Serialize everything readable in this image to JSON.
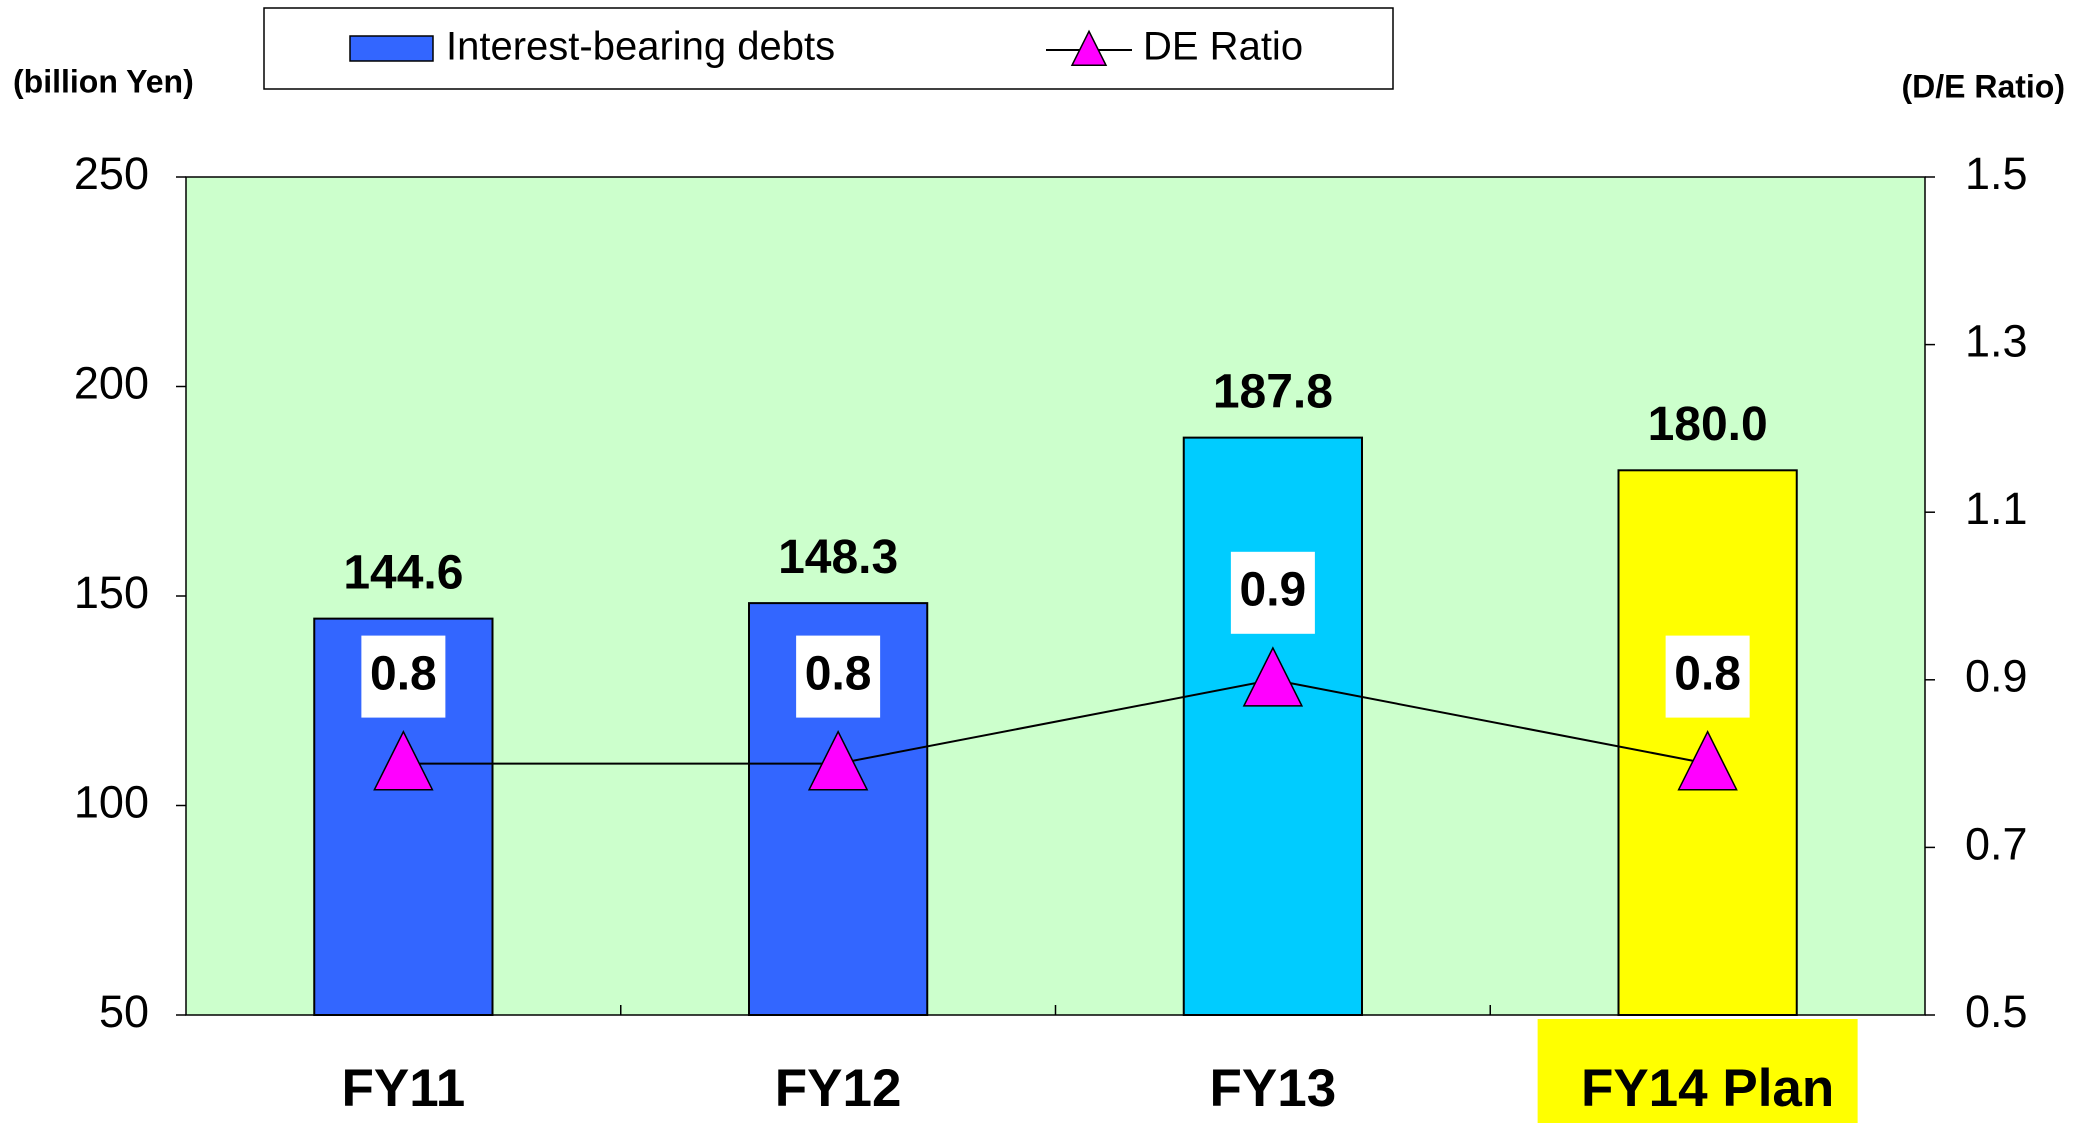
{
  "chart_data": {
    "type": "bar-line",
    "y_label": "(billion Yen)",
    "y2_label": "(D/E Ratio)",
    "categories": [
      "FY11",
      "FY12",
      "FY13",
      "FY14 Plan"
    ],
    "highlight": {
      "index": 3,
      "color": "#ffff00"
    },
    "series": [
      {
        "name": "Interest-bearing debts",
        "type": "bar",
        "color": "#3366ff",
        "colors": [
          "#3366ff",
          "#3366ff",
          "#00ccff",
          "#ffff00"
        ],
        "values": [
          144.6,
          148.3,
          187.8,
          180.0
        ],
        "value_labels": [
          "144.6",
          "148.3",
          "187.8",
          "180.0"
        ]
      },
      {
        "name": "DE Ratio",
        "type": "line",
        "axis": "y2",
        "color": "#000000",
        "marker_color": "#ff00ff",
        "values": [
          0.8,
          0.8,
          0.9,
          0.8
        ]
      }
    ],
    "ylim": [
      50,
      250
    ],
    "yticks": [
      50,
      100,
      150,
      200,
      250
    ],
    "y2lim": [
      0.5,
      1.5
    ],
    "y2ticks": [
      0.5,
      0.7,
      0.9,
      1.1,
      1.3,
      1.5
    ],
    "plot_background": "#ccffcc"
  }
}
